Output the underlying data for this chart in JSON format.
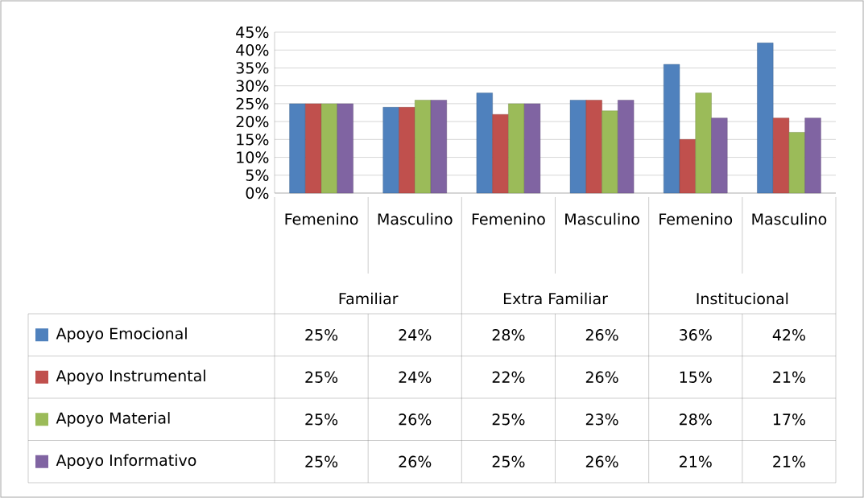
{
  "chart_data": {
    "type": "bar",
    "categories": [
      "Femenino",
      "Masculino",
      "Femenino",
      "Masculino",
      "Femenino",
      "Masculino"
    ],
    "annotations": [
      "Familiar",
      "Extra Familiar",
      "Institucional"
    ],
    "ylim": [
      0,
      45
    ],
    "yticks": [
      {
        "value": 0,
        "label": "0%"
      },
      {
        "value": 5,
        "label": "5%"
      },
      {
        "value": 10,
        "label": "10%"
      },
      {
        "value": 15,
        "label": "15%"
      },
      {
        "value": 20,
        "label": "20%"
      },
      {
        "value": 25,
        "label": "25%"
      },
      {
        "value": 30,
        "label": "30%"
      },
      {
        "value": 35,
        "label": "35%"
      },
      {
        "value": 40,
        "label": "40%"
      },
      {
        "value": 45,
        "label": "45%"
      }
    ],
    "grid": "y",
    "legend": "bottom",
    "series": [
      {
        "name": "Apoyo Emocional",
        "color": "#4f81bd",
        "values": [
          25,
          24,
          28,
          26,
          36,
          42
        ],
        "value_labels": [
          "25%",
          "24%",
          "28%",
          "26%",
          "36%",
          "42%"
        ]
      },
      {
        "name": "Apoyo Instrumental",
        "color": "#c0504d",
        "values": [
          25,
          24,
          22,
          26,
          15,
          21
        ],
        "value_labels": [
          "25%",
          "24%",
          "22%",
          "26%",
          "15%",
          "21%"
        ]
      },
      {
        "name": "Apoyo Material",
        "color": "#9bbb59",
        "values": [
          25,
          26,
          25,
          23,
          28,
          17
        ],
        "value_labels": [
          "25%",
          "26%",
          "25%",
          "23%",
          "28%",
          "17%"
        ]
      },
      {
        "name": "Apoyo Informativo",
        "color": "#8064a2",
        "values": [
          25,
          26,
          25,
          26,
          21,
          21
        ],
        "value_labels": [
          "25%",
          "26%",
          "25%",
          "26%",
          "21%",
          "21%"
        ]
      }
    ]
  }
}
